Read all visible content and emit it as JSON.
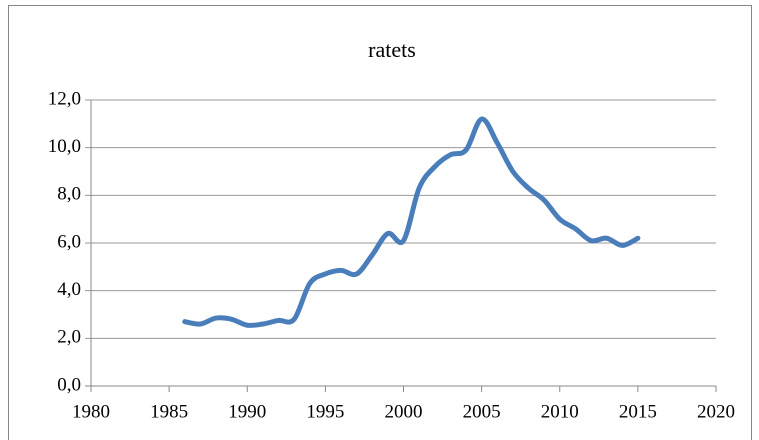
{
  "chart_data": {
    "type": "line",
    "title": "ratets",
    "x": [
      1986,
      1987,
      1988,
      1989,
      1990,
      1991,
      1992,
      1993,
      1994,
      1995,
      1996,
      1997,
      1998,
      1999,
      2000,
      2001,
      2002,
      2003,
      2004,
      2005,
      2006,
      2007,
      2008,
      2009,
      2010,
      2011,
      2012,
      2013,
      2014,
      2015
    ],
    "series": [
      {
        "color": "#4a7ebb",
        "values": [
          2.7,
          2.6,
          2.85,
          2.8,
          2.55,
          2.6,
          2.75,
          2.8,
          4.3,
          4.7,
          4.85,
          4.7,
          5.5,
          6.4,
          6.1,
          8.3,
          9.2,
          9.7,
          9.9,
          11.2,
          10.2,
          9.0,
          8.3,
          7.8,
          7.0,
          6.6,
          6.1,
          6.2,
          5.9,
          6.2
        ]
      }
    ],
    "xlim": [
      1980,
      2020
    ],
    "xticks": [
      1980,
      1985,
      1990,
      1995,
      2000,
      2005,
      2010,
      2015,
      2020
    ],
    "ylim": [
      0,
      12
    ],
    "yticks": [
      {
        "value": 0,
        "label": "0,0"
      },
      {
        "value": 2,
        "label": "2,0"
      },
      {
        "value": 4,
        "label": "4,0"
      },
      {
        "value": 6,
        "label": "6,0"
      },
      {
        "value": 8,
        "label": "8,0"
      },
      {
        "value": 10,
        "label": "10,0"
      },
      {
        "value": 12,
        "label": "12,0"
      }
    ],
    "grid": true
  }
}
